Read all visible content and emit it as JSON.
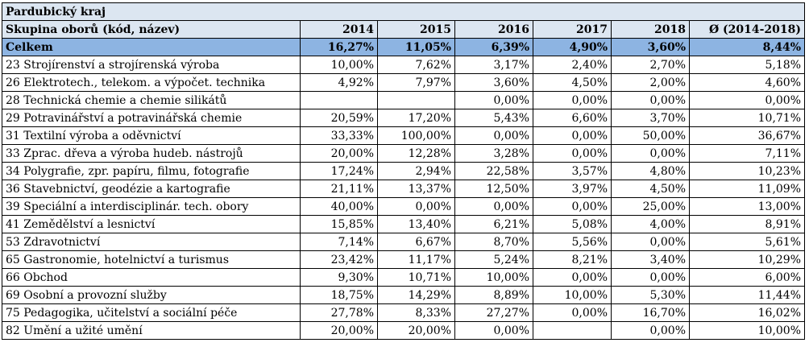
{
  "title": "Pardubický kraj",
  "columns": [
    "Skupina oborů (kód, název)",
    "2014",
    "2015",
    "2016",
    "2017",
    "2018",
    "Ø (2014-2018)"
  ],
  "total": [
    "Celkem",
    "16,27%",
    "11,05%",
    "6,39%",
    "4,90%",
    "3,60%",
    "8,44%"
  ],
  "rows": [
    [
      "23 Strojírenství a strojírenská výroba",
      "10,00%",
      "7,62%",
      "3,17%",
      "2,40%",
      "2,70%",
      "5,18%"
    ],
    [
      "26 Elektrotech., telekom. a výpočet. technika",
      "4,92%",
      "7,97%",
      "3,60%",
      "4,50%",
      "2,00%",
      "4,60%"
    ],
    [
      "28 Technická chemie a chemie silikátů",
      "",
      "",
      "0,00%",
      "0,00%",
      "0,00%",
      "0,00%"
    ],
    [
      "29 Potravinářství a potravinářská chemie",
      "20,59%",
      "17,20%",
      "5,43%",
      "6,60%",
      "3,70%",
      "10,71%"
    ],
    [
      "31 Textilní výroba a oděvnictví",
      "33,33%",
      "100,00%",
      "0,00%",
      "0,00%",
      "50,00%",
      "36,67%"
    ],
    [
      "33 Zprac. dřeva a výroba hudeb. nástrojů",
      "20,00%",
      "12,28%",
      "3,28%",
      "0,00%",
      "0,00%",
      "7,11%"
    ],
    [
      "34 Polygrafie, zpr. papíru, filmu, fotografie",
      "17,24%",
      "2,94%",
      "22,58%",
      "3,57%",
      "4,80%",
      "10,23%"
    ],
    [
      "36 Stavebnictví, geodézie a kartografie",
      "21,11%",
      "13,37%",
      "12,50%",
      "3,97%",
      "4,50%",
      "11,09%"
    ],
    [
      "39 Speciální a interdisciplinár. tech. obory",
      "40,00%",
      "0,00%",
      "0,00%",
      "0,00%",
      "25,00%",
      "13,00%"
    ],
    [
      "41 Zemědělství a lesnictví",
      "15,85%",
      "13,40%",
      "6,21%",
      "5,08%",
      "4,00%",
      "8,91%"
    ],
    [
      "53 Zdravotnictví",
      "7,14%",
      "6,67%",
      "8,70%",
      "5,56%",
      "0,00%",
      "5,61%"
    ],
    [
      "65 Gastronomie, hotelnictví a turismus",
      "23,42%",
      "11,17%",
      "5,24%",
      "8,21%",
      "3,40%",
      "10,29%"
    ],
    [
      "66 Obchod",
      "9,30%",
      "10,71%",
      "10,00%",
      "0,00%",
      "0,00%",
      "6,00%"
    ],
    [
      "69 Osobní a provozní služby",
      "18,75%",
      "14,29%",
      "8,89%",
      "10,00%",
      "5,30%",
      "11,44%"
    ],
    [
      "75 Pedagogika, učitelství a sociální péče",
      "27,78%",
      "8,33%",
      "27,27%",
      "0,00%",
      "16,70%",
      "16,02%"
    ],
    [
      "82 Umění a užité umění",
      "20,00%",
      "20,00%",
      "0,00%",
      "",
      "0,00%",
      "10,00%"
    ]
  ]
}
